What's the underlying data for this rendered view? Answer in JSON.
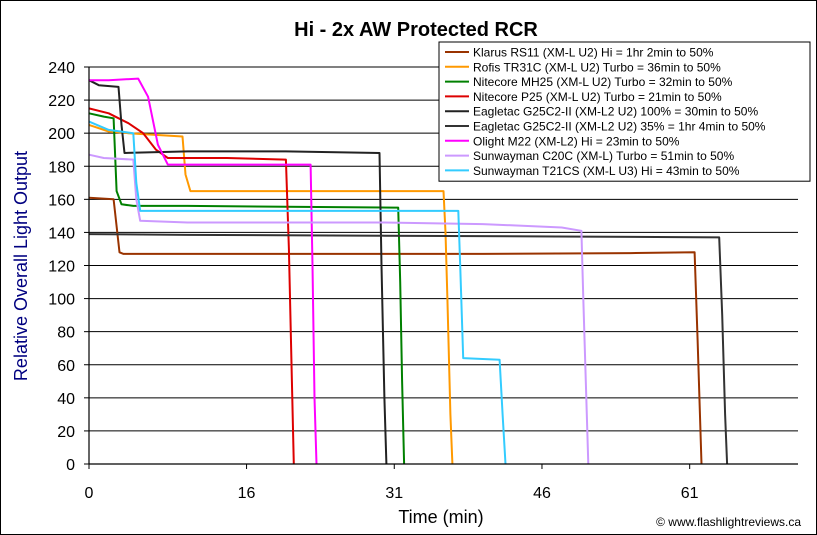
{
  "chart_data": {
    "type": "line",
    "title": "Hi - 2x AW Protected RCR",
    "xlabel": "Time (min)",
    "ylabel": "Relative Overall Light Output",
    "xlim": [
      0,
      72
    ],
    "ylim": [
      0,
      240
    ],
    "x_ticks": [
      0,
      16,
      31,
      46,
      61
    ],
    "y_ticks": [
      0,
      20,
      40,
      60,
      80,
      100,
      120,
      140,
      160,
      180,
      200,
      220,
      240
    ],
    "grid": "horizontal",
    "legend_position": "top-right",
    "background": "#ffffff",
    "plot_background": "#ffffff",
    "credit": "© www.flashlightreviews.ca",
    "series": [
      {
        "name": "Klarus RS11 (XM-L U2) Hi = 1hr 2min to 50%",
        "color": "#993300",
        "points": [
          [
            0,
            161
          ],
          [
            2.5,
            160
          ],
          [
            3.1,
            128
          ],
          [
            3.5,
            127
          ],
          [
            20,
            127
          ],
          [
            40,
            127
          ],
          [
            55,
            127.5
          ],
          [
            61.5,
            128
          ],
          [
            61.8,
            75
          ],
          [
            62.2,
            0
          ]
        ]
      },
      {
        "name": "Rofis TR31C (XM-L U2) Turbo = 36min to 50%",
        "color": "#ff9900",
        "points": [
          [
            0,
            205
          ],
          [
            2,
            201
          ],
          [
            4,
            200
          ],
          [
            9.5,
            198
          ],
          [
            9.8,
            175
          ],
          [
            10.3,
            165
          ],
          [
            15,
            165
          ],
          [
            25,
            165
          ],
          [
            36,
            165
          ],
          [
            36.2,
            140
          ],
          [
            36.4,
            100
          ],
          [
            36.7,
            30
          ],
          [
            36.9,
            0
          ]
        ]
      },
      {
        "name": "Nitecore MH25 (XM-L U2) Turbo = 32min to 50%",
        "color": "#008000",
        "points": [
          [
            0,
            212
          ],
          [
            1.5,
            210
          ],
          [
            2.5,
            209
          ],
          [
            2.8,
            165
          ],
          [
            3.3,
            157
          ],
          [
            4.5,
            156
          ],
          [
            10,
            156
          ],
          [
            20,
            155.5
          ],
          [
            31,
            155
          ],
          [
            31.4,
            155
          ],
          [
            31.6,
            110
          ],
          [
            31.8,
            50
          ],
          [
            32,
            0
          ]
        ]
      },
      {
        "name": "Nitecore P25 (XM-L U2) Turbo = 21min to 50%",
        "color": "#dd0000",
        "points": [
          [
            0,
            215
          ],
          [
            2,
            212
          ],
          [
            4,
            206
          ],
          [
            5.5,
            200
          ],
          [
            6.8,
            190
          ],
          [
            8,
            185
          ],
          [
            14,
            185
          ],
          [
            20,
            184
          ],
          [
            20.3,
            130
          ],
          [
            20.6,
            50
          ],
          [
            20.8,
            0
          ]
        ]
      },
      {
        "name": "Eagletac G25C2-II (XM-L2 U2) 100% = 30min to 50%",
        "color": "#222222",
        "points": [
          [
            0,
            232
          ],
          [
            1,
            229
          ],
          [
            3,
            228
          ],
          [
            3.3,
            205
          ],
          [
            3.6,
            188
          ],
          [
            10,
            189
          ],
          [
            20,
            189
          ],
          [
            29.5,
            188
          ],
          [
            29.7,
            120
          ],
          [
            30,
            40
          ],
          [
            30.2,
            0
          ]
        ]
      },
      {
        "name": "Eagletac G25C2-II (XM-L2 U2) 35% = 1hr 4min to 50%",
        "color": "#333333",
        "points": [
          [
            0,
            139
          ],
          [
            10,
            138.5
          ],
          [
            30,
            138
          ],
          [
            50,
            137.5
          ],
          [
            64,
            137
          ],
          [
            64.3,
            90
          ],
          [
            64.6,
            30
          ],
          [
            64.8,
            0
          ]
        ]
      },
      {
        "name": "Olight M22 (XM-L2) Hi = 23min to 50%",
        "color": "#ff00ff",
        "points": [
          [
            0,
            232
          ],
          [
            2,
            232
          ],
          [
            5,
            233
          ],
          [
            6,
            222
          ],
          [
            7,
            193
          ],
          [
            8,
            181
          ],
          [
            14,
            181
          ],
          [
            22.5,
            181
          ],
          [
            22.7,
            120
          ],
          [
            22.9,
            40
          ],
          [
            23.1,
            0
          ]
        ]
      },
      {
        "name": "Sunwayman C20C (XM-L) Turbo = 51min to 50%",
        "color": "#cc99ff",
        "points": [
          [
            0,
            187
          ],
          [
            1.5,
            185
          ],
          [
            4.5,
            184
          ],
          [
            4.8,
            160
          ],
          [
            5.2,
            147
          ],
          [
            10,
            146
          ],
          [
            30,
            146
          ],
          [
            40,
            145
          ],
          [
            48,
            143
          ],
          [
            50,
            141
          ],
          [
            50.2,
            100
          ],
          [
            50.5,
            40
          ],
          [
            50.7,
            0
          ]
        ]
      },
      {
        "name": "Sunwayman T21CS (XM-L U3) Hi = 43min to 50%",
        "color": "#33ccff",
        "points": [
          [
            0,
            207
          ],
          [
            2,
            202
          ],
          [
            4.5,
            200
          ],
          [
            4.8,
            170
          ],
          [
            5.2,
            153
          ],
          [
            15,
            153
          ],
          [
            30,
            153
          ],
          [
            37.5,
            153
          ],
          [
            37.7,
            120
          ],
          [
            38,
            64
          ],
          [
            41.7,
            63
          ],
          [
            42,
            30
          ],
          [
            42.3,
            0
          ]
        ]
      }
    ]
  }
}
